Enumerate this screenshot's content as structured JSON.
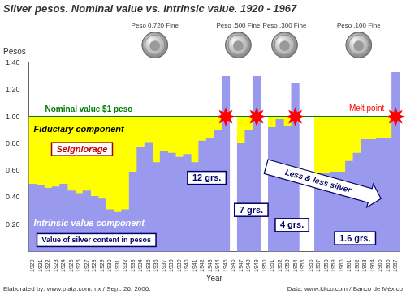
{
  "chart_data": {
    "type": "bar",
    "stacked": true,
    "grid": false,
    "title": "Silver pesos. Nominal value vs. intrinsic value. 1920 - 1967",
    "y_label": "Pesos",
    "x_label": "Year",
    "categories": [
      "1920",
      "1921",
      "1922",
      "1923",
      "1924",
      "1925",
      "1926",
      "1927",
      "1928",
      "1929",
      "1930",
      "1931",
      "1932",
      "1933",
      "1934",
      "1935",
      "1936",
      "1937",
      "1938",
      "1939",
      "1940",
      "1941",
      "1942",
      "1943",
      "1944",
      "1945",
      "1946",
      "1947",
      "1948",
      "1949",
      "1950",
      "1951",
      "1952",
      "1953",
      "1954",
      "1955",
      "1956",
      "1957",
      "1958",
      "1959",
      "1960",
      "1961",
      "1962",
      "1963",
      "1964",
      "1965",
      "1966",
      "1967"
    ],
    "series": [
      {
        "name": "Intrinsic value component",
        "color": "#9999ee",
        "values": [
          0.5,
          0.49,
          0.47,
          0.48,
          0.5,
          0.45,
          0.43,
          0.45,
          0.41,
          0.39,
          0.31,
          0.29,
          0.31,
          0.59,
          0.77,
          0.81,
          0.66,
          0.74,
          0.73,
          0.7,
          0.72,
          0.66,
          0.82,
          0.84,
          0.9,
          1.3,
          null,
          0.8,
          0.9,
          1.3,
          null,
          0.92,
          0.98,
          0.93,
          1.25,
          null,
          null,
          0.58,
          0.58,
          0.59,
          0.59,
          0.67,
          0.73,
          0.83,
          0.83,
          0.84,
          0.84,
          1.33
        ]
      },
      {
        "name": "Fiduciary component",
        "color": "#ffff00",
        "values": [
          0.5,
          0.51,
          0.53,
          0.52,
          0.5,
          0.55,
          0.57,
          0.55,
          0.59,
          0.61,
          0.69,
          0.71,
          0.69,
          0.41,
          0.23,
          0.19,
          0.34,
          0.26,
          0.27,
          0.3,
          0.28,
          0.34,
          0.18,
          0.16,
          0.1,
          0,
          null,
          0.2,
          0.1,
          0,
          null,
          0.08,
          0.02,
          0.07,
          0,
          null,
          null,
          0.42,
          0.42,
          0.41,
          0.41,
          0.33,
          0.27,
          0.17,
          0.17,
          0.16,
          0.16,
          0
        ]
      }
    ],
    "ylim": [
      0,
      1.4
    ],
    "yticks": [
      {
        "value": 0.2,
        "label": "0.20"
      },
      {
        "value": 0.4,
        "label": "0.40"
      },
      {
        "value": 0.6,
        "label": "0.60"
      },
      {
        "value": 0.8,
        "label": "0.80"
      },
      {
        "value": 1.0,
        "label": "1.00"
      },
      {
        "value": 1.2,
        "label": "1.20"
      },
      {
        "value": 1.4,
        "label": "1.40"
      }
    ],
    "nominal_value": {
      "value": 1,
      "label": "Nominal value $1 peso",
      "color": "#007a00"
    },
    "melt_points": {
      "label": "Melt point",
      "color": "#ff0000",
      "categories": [
        "1945",
        "1949",
        "1954",
        "1967"
      ]
    },
    "coins": [
      "Peso 0.720 Fine",
      "Peso .500 Fine",
      "Peso .300 Fine",
      "Peso .100 Fine"
    ],
    "annotations": {
      "seigniorage": "Seigniorage",
      "silver_value": "Value of silver content in pesos",
      "trend": "Less & less silver",
      "grams": [
        "12 grs.",
        "7 grs.",
        "4 grs.",
        "1.6 grs."
      ]
    },
    "footer": {
      "left": "Elaborated by: www.plata.com.mx / Sept. 26, 2006.",
      "right": "Data: www.kitco.com / Banco de México"
    }
  }
}
